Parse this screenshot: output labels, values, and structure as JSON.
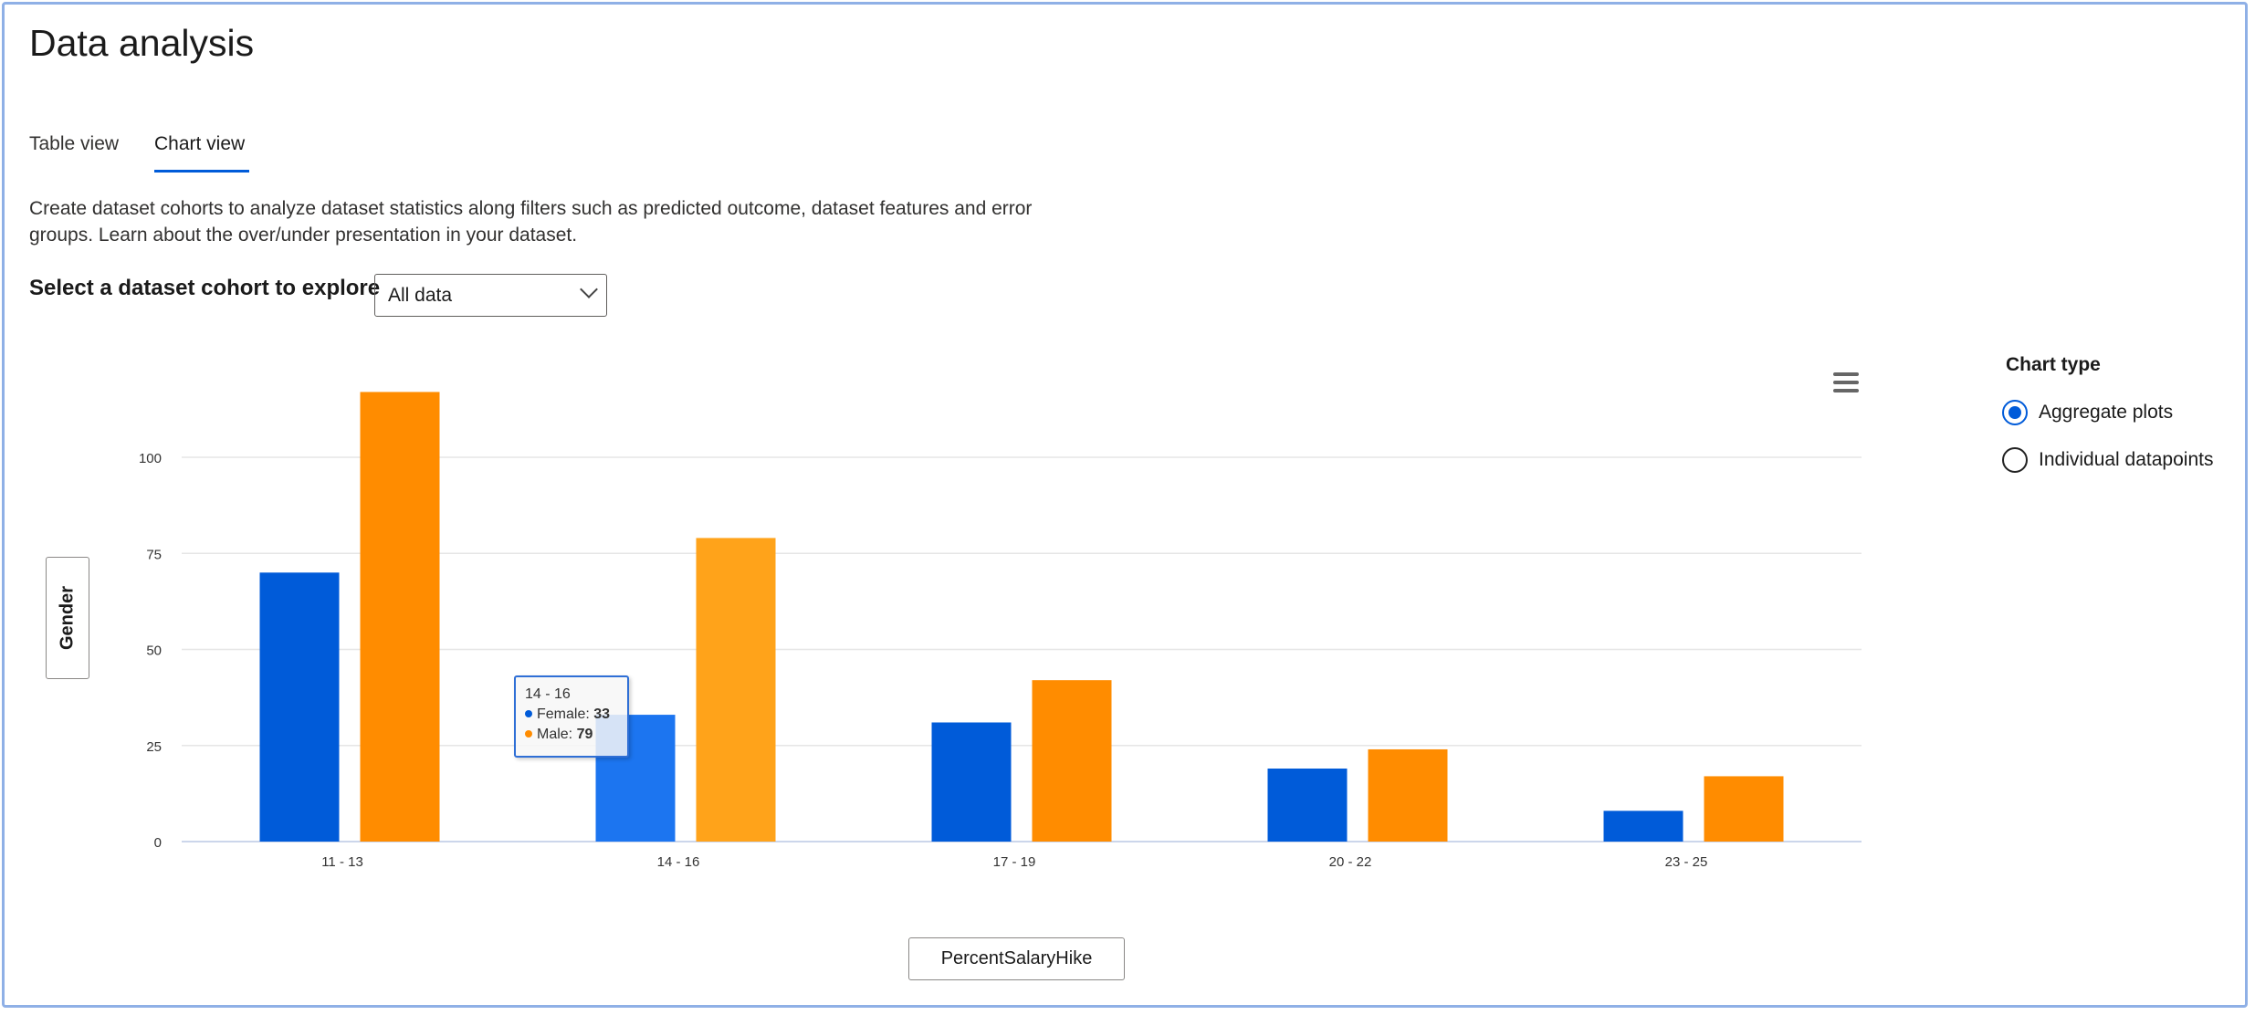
{
  "page": {
    "title": "Data analysis"
  },
  "tabs": [
    {
      "label": "Table view",
      "active": false
    },
    {
      "label": "Chart view",
      "active": true
    }
  ],
  "description": "Create dataset cohorts to analyze dataset statistics along filters such as predicted outcome, dataset features and error groups. Learn about the over/under presentation in your dataset.",
  "cohort_select": {
    "label": "Select a dataset cohort to explore",
    "value": "All data"
  },
  "chart_type": {
    "label": "Chart type",
    "options": [
      {
        "label": "Aggregate plots",
        "selected": true
      },
      {
        "label": "Individual datapoints",
        "selected": false
      }
    ]
  },
  "axis_buttons": {
    "y": "Gender",
    "x": "PercentSalaryHike"
  },
  "icons": {
    "menu": "hamburger-menu-icon",
    "dropdown": "chevron-down-icon"
  },
  "tooltip": {
    "title": "14 - 16",
    "rows": [
      {
        "label": "Female: ",
        "value": "33",
        "color": "#005bd9"
      },
      {
        "label": "Male: ",
        "value": "79",
        "color": "#ff8c00"
      }
    ]
  },
  "chart_data": {
    "type": "bar",
    "categories": [
      "11 - 13",
      "14 - 16",
      "17 - 19",
      "20 - 22",
      "23 - 25"
    ],
    "series": [
      {
        "name": "Female",
        "color": "#005bd9",
        "values": [
          70,
          33,
          31,
          19,
          8
        ]
      },
      {
        "name": "Male",
        "color": "#ff8c00",
        "values": [
          117,
          79,
          42,
          24,
          17
        ]
      }
    ],
    "yticks": [
      0,
      25,
      50,
      75,
      100
    ],
    "ylim": [
      0,
      125
    ],
    "grid": true,
    "highlighted_category": "14 - 16"
  }
}
